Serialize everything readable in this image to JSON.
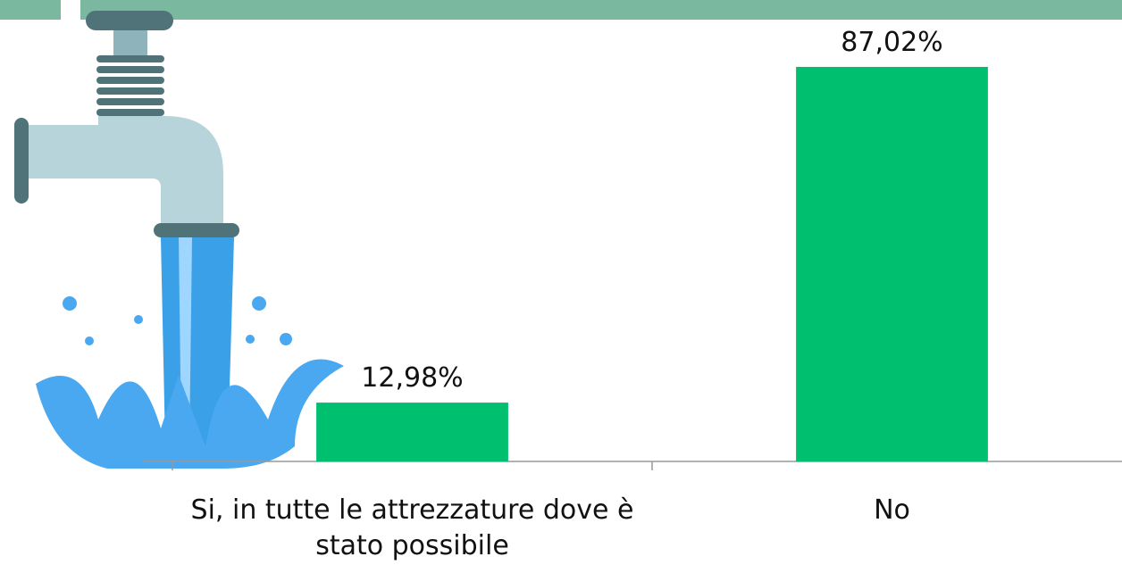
{
  "chart_data": {
    "type": "bar",
    "categories": [
      "Si, in tutte le attrezzature dove è stato possibile",
      "No"
    ],
    "values": [
      12.98,
      87.02
    ],
    "value_labels": [
      "12,98%",
      "87,02%"
    ],
    "color": "#00c070",
    "ylim": [
      0,
      100
    ]
  }
}
